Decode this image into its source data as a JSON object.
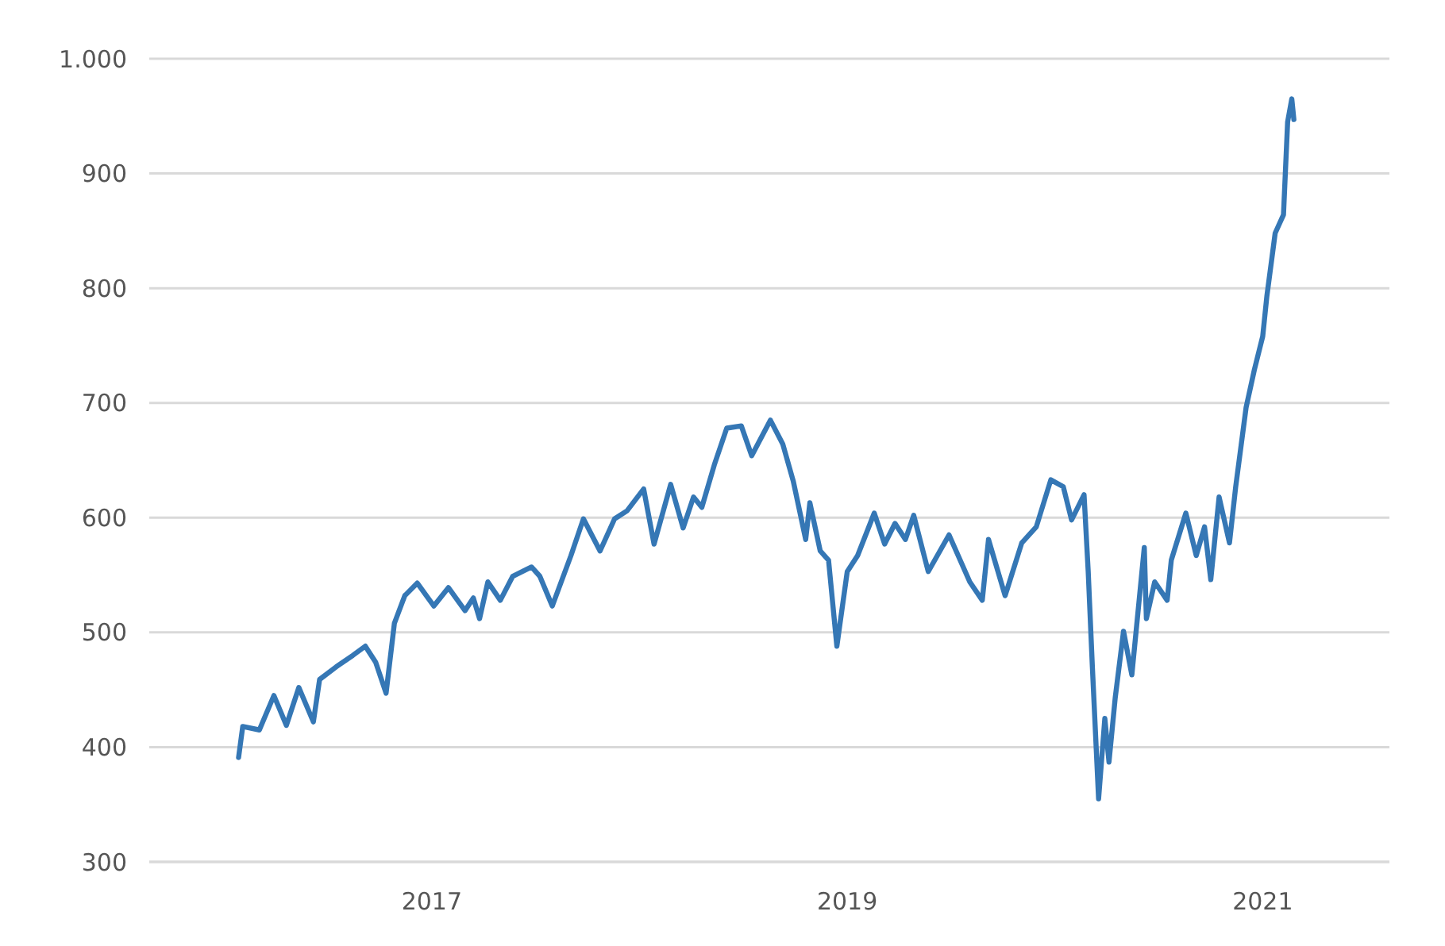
{
  "chart_data": {
    "type": "line",
    "xlim": [
      2015.64,
      2021.61
    ],
    "xticks": [
      2017,
      2019,
      2021
    ],
    "ylim": [
      300,
      1000
    ],
    "yticks": [
      300,
      400,
      500,
      600,
      700,
      800,
      900,
      {
        "value": 1000,
        "label": "1.000"
      }
    ],
    "grid": "y",
    "line_style": "solid",
    "marker": "none",
    "series": [
      {
        "color": "#3577b5",
        "x": [
          2016.07,
          2016.09,
          2016.17,
          2016.24,
          2016.3,
          2016.36,
          2016.43,
          2016.46,
          2016.54,
          2016.62,
          2016.68,
          2016.73,
          2016.78,
          2016.82,
          2016.87,
          2016.93,
          2017.01,
          2017.08,
          2017.16,
          2017.2,
          2017.23,
          2017.27,
          2017.33,
          2017.39,
          2017.48,
          2017.52,
          2017.58,
          2017.67,
          2017.73,
          2017.81,
          2017.88,
          2017.94,
          2018.02,
          2018.07,
          2018.15,
          2018.21,
          2018.26,
          2018.3,
          2018.36,
          2018.42,
          2018.49,
          2018.54,
          2018.63,
          2018.69,
          2018.74,
          2018.8,
          2018.82,
          2018.87,
          2018.91,
          2018.95,
          2019.0,
          2019.05,
          2019.13,
          2019.18,
          2019.23,
          2019.28,
          2019.32,
          2019.39,
          2019.49,
          2019.59,
          2019.65,
          2019.68,
          2019.76,
          2019.84,
          2019.91,
          2019.98,
          2020.04,
          2020.08,
          2020.14,
          2020.16,
          2020.18,
          2020.21,
          2020.24,
          2020.26,
          2020.29,
          2020.33,
          2020.37,
          2020.43,
          2020.44,
          2020.48,
          2020.54,
          2020.56,
          2020.63,
          2020.68,
          2020.72,
          2020.75,
          2020.79,
          2020.84,
          2020.87,
          2020.92,
          2020.96,
          2021.0,
          2021.02,
          2021.06,
          2021.1,
          2021.12,
          2021.14,
          2021.15
        ],
        "values": [
          391,
          418,
          415,
          445,
          419,
          452,
          422,
          459,
          470,
          480,
          488,
          474,
          447,
          508,
          532,
          543,
          523,
          539,
          519,
          530,
          512,
          544,
          528,
          549,
          557,
          549,
          523,
          567,
          599,
          571,
          599,
          606,
          625,
          577,
          629,
          591,
          618,
          609,
          646,
          678,
          680,
          654,
          685,
          664,
          632,
          581,
          613,
          571,
          563,
          488,
          553,
          567,
          604,
          577,
          595,
          581,
          602,
          553,
          585,
          544,
          528,
          581,
          532,
          578,
          592,
          633,
          627,
          598,
          620,
          553,
          470,
          355,
          425,
          387,
          443,
          501,
          463,
          574,
          512,
          544,
          528,
          563,
          604,
          567,
          592,
          546,
          618,
          578,
          627,
          696,
          729,
          758,
          793,
          848,
          864,
          945,
          965,
          947
        ]
      }
    ]
  }
}
